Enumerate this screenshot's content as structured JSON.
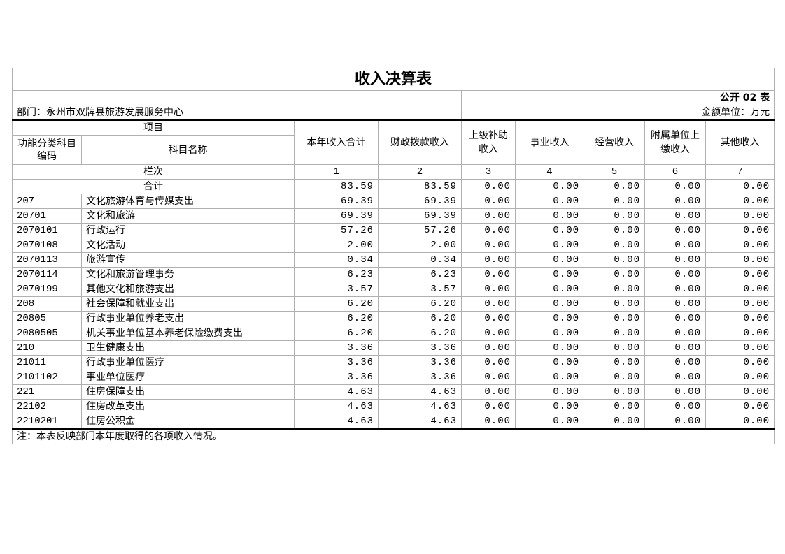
{
  "title": "收入决算表",
  "form_no": "公开 02 表",
  "department": "部门：永州市双牌县旅游发展服务中心",
  "unit": "金额单位：万元",
  "headers": {
    "item": "项目",
    "code": "功能分类科目编码",
    "name": "科目名称",
    "total": "本年收入合计",
    "fiscal": "财政拨款收入",
    "superior": "上级补助收入",
    "business": "事业收入",
    "operating": "经营收入",
    "affiliated": "附属单位上缴收入",
    "other": "其他收入"
  },
  "column_row": {
    "label": "栏次",
    "nums": [
      "1",
      "2",
      "3",
      "4",
      "5",
      "6",
      "7"
    ]
  },
  "total_row": {
    "label": "合计",
    "values": [
      "83.59",
      "83.59",
      "0.00",
      "0.00",
      "0.00",
      "0.00",
      "0.00"
    ]
  },
  "rows": [
    {
      "code": "207",
      "name": "文化旅游体育与传媒支出",
      "values": [
        "69.39",
        "69.39",
        "0.00",
        "0.00",
        "0.00",
        "0.00",
        "0.00"
      ]
    },
    {
      "code": "20701",
      "name": "文化和旅游",
      "values": [
        "69.39",
        "69.39",
        "0.00",
        "0.00",
        "0.00",
        "0.00",
        "0.00"
      ]
    },
    {
      "code": "2070101",
      "name": "行政运行",
      "values": [
        "57.26",
        "57.26",
        "0.00",
        "0.00",
        "0.00",
        "0.00",
        "0.00"
      ]
    },
    {
      "code": "2070108",
      "name": "文化活动",
      "values": [
        "2.00",
        "2.00",
        "0.00",
        "0.00",
        "0.00",
        "0.00",
        "0.00"
      ]
    },
    {
      "code": "2070113",
      "name": "旅游宣传",
      "values": [
        "0.34",
        "0.34",
        "0.00",
        "0.00",
        "0.00",
        "0.00",
        "0.00"
      ]
    },
    {
      "code": "2070114",
      "name": "文化和旅游管理事务",
      "values": [
        "6.23",
        "6.23",
        "0.00",
        "0.00",
        "0.00",
        "0.00",
        "0.00"
      ]
    },
    {
      "code": "2070199",
      "name": "其他文化和旅游支出",
      "values": [
        "3.57",
        "3.57",
        "0.00",
        "0.00",
        "0.00",
        "0.00",
        "0.00"
      ]
    },
    {
      "code": "208",
      "name": "社会保障和就业支出",
      "values": [
        "6.20",
        "6.20",
        "0.00",
        "0.00",
        "0.00",
        "0.00",
        "0.00"
      ]
    },
    {
      "code": "20805",
      "name": "行政事业单位养老支出",
      "values": [
        "6.20",
        "6.20",
        "0.00",
        "0.00",
        "0.00",
        "0.00",
        "0.00"
      ]
    },
    {
      "code": "2080505",
      "name": "机关事业单位基本养老保险缴费支出",
      "values": [
        "6.20",
        "6.20",
        "0.00",
        "0.00",
        "0.00",
        "0.00",
        "0.00"
      ]
    },
    {
      "code": "210",
      "name": "卫生健康支出",
      "values": [
        "3.36",
        "3.36",
        "0.00",
        "0.00",
        "0.00",
        "0.00",
        "0.00"
      ]
    },
    {
      "code": "21011",
      "name": "行政事业单位医疗",
      "values": [
        "3.36",
        "3.36",
        "0.00",
        "0.00",
        "0.00",
        "0.00",
        "0.00"
      ]
    },
    {
      "code": "2101102",
      "name": "事业单位医疗",
      "values": [
        "3.36",
        "3.36",
        "0.00",
        "0.00",
        "0.00",
        "0.00",
        "0.00"
      ]
    },
    {
      "code": "221",
      "name": "住房保障支出",
      "values": [
        "4.63",
        "4.63",
        "0.00",
        "0.00",
        "0.00",
        "0.00",
        "0.00"
      ]
    },
    {
      "code": "22102",
      "name": "住房改革支出",
      "values": [
        "4.63",
        "4.63",
        "0.00",
        "0.00",
        "0.00",
        "0.00",
        "0.00"
      ]
    },
    {
      "code": "2210201",
      "name": "住房公积金",
      "values": [
        "4.63",
        "4.63",
        "0.00",
        "0.00",
        "0.00",
        "0.00",
        "0.00"
      ]
    }
  ],
  "note": "注：本表反映部门本年度取得的各项收入情况。"
}
